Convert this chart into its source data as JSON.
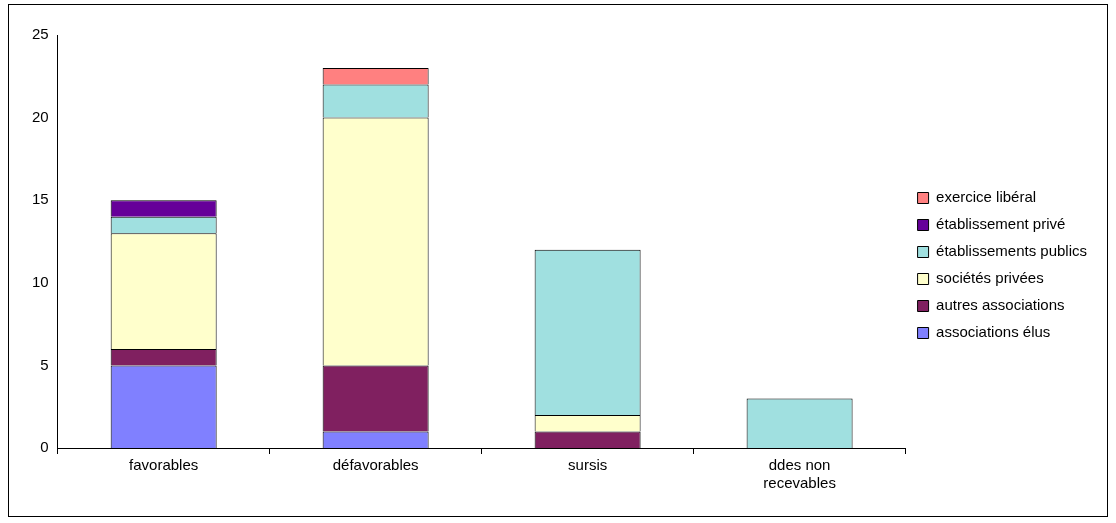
{
  "chart_data": {
    "type": "bar",
    "stacked": true,
    "categories": [
      "favorables",
      "défavorables",
      "sursis",
      "ddes non recevables"
    ],
    "series": [
      {
        "name": "associations élus",
        "color": "#8080ff",
        "values": [
          5,
          1,
          0,
          0
        ]
      },
      {
        "name": "autres associations",
        "color": "#802060",
        "values": [
          1,
          4,
          1,
          0
        ]
      },
      {
        "name": "sociétés privées",
        "color": "#ffffcc",
        "values": [
          7,
          15,
          1,
          0
        ]
      },
      {
        "name": "établissements publics",
        "color": "#a0e0e0",
        "values": [
          1,
          2,
          10,
          3
        ]
      },
      {
        "name": "établissement privé",
        "color": "#660099",
        "values": [
          1,
          0,
          0,
          0
        ]
      },
      {
        "name": "exercice libéral",
        "color": "#ff8080",
        "values": [
          0,
          1,
          0,
          0
        ]
      }
    ],
    "ylim": [
      0,
      25
    ],
    "yticks": [
      0,
      5,
      10,
      15,
      20,
      25
    ],
    "grid": false,
    "legend": "right"
  }
}
